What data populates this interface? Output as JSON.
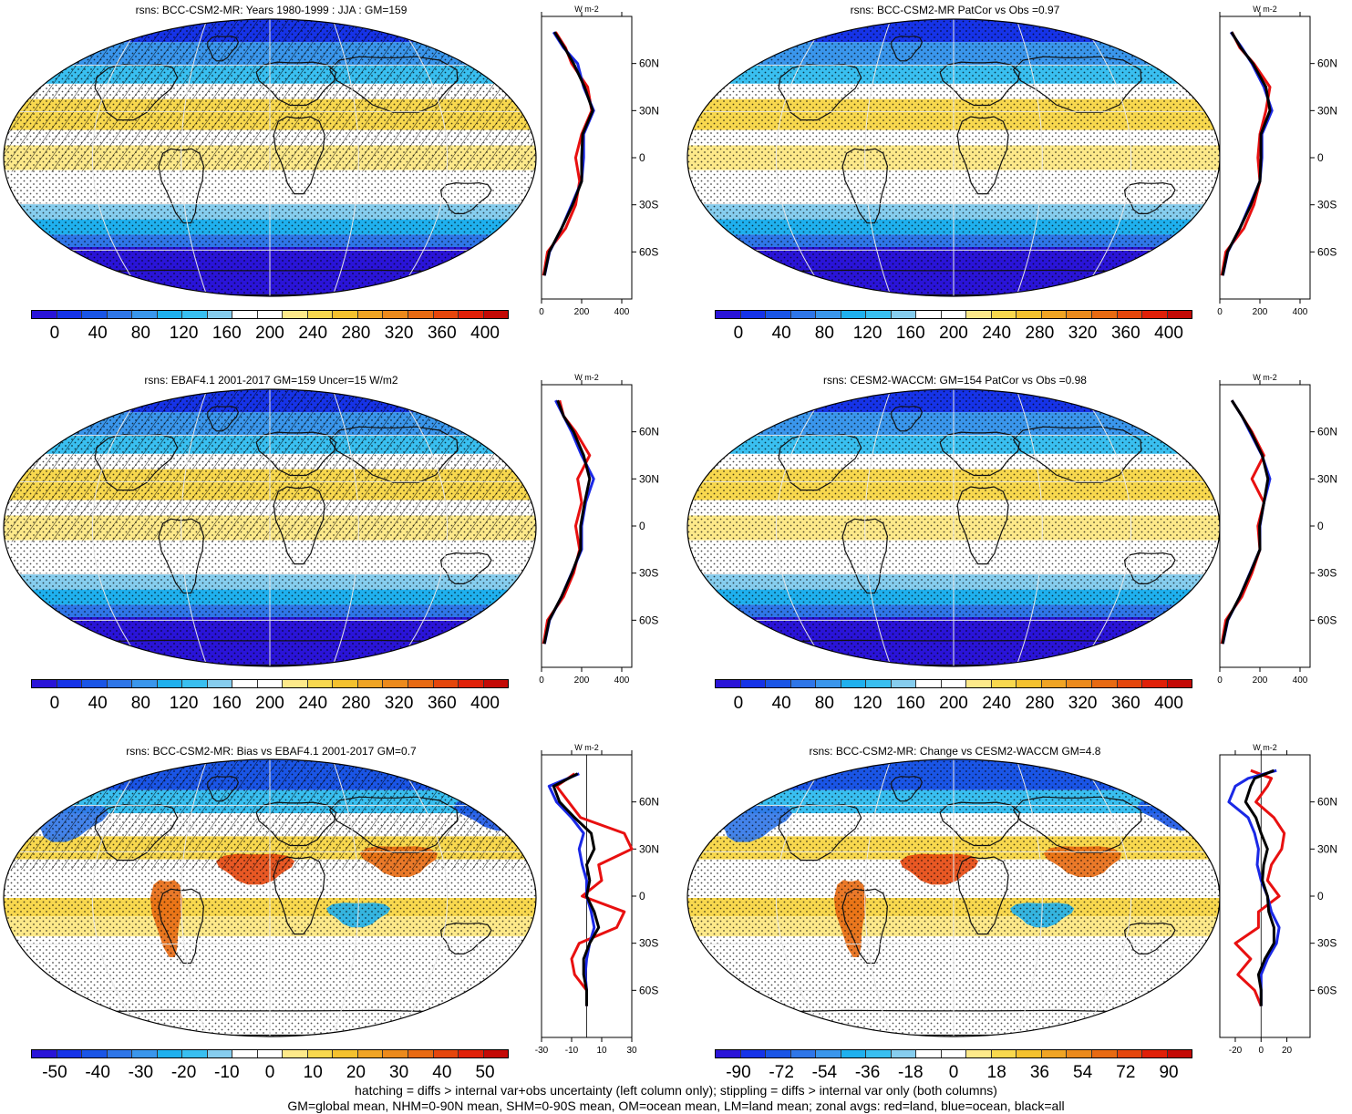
{
  "panels": [
    {
      "id": "p1",
      "title": "rsns: BCC-CSM2-MR: Years 1980-1999 : JJA : GM=159",
      "palette": "full",
      "hatching": "heavy",
      "colorbar": {
        "labels": [
          "0",
          "40",
          "80",
          "120",
          "160",
          "200",
          "240",
          "280",
          "320",
          "360",
          "400"
        ]
      },
      "zonal": {
        "xticks": [
          "0",
          "200",
          "400"
        ],
        "xlim": [
          0,
          450
        ],
        "unit": "W m-2",
        "zero_line": false
      }
    },
    {
      "id": "p2",
      "title": "rsns: BCC-CSM2-MR PatCor vs Obs =0.97",
      "palette": "full",
      "hatching": "none",
      "colorbar": {
        "labels": [
          "0",
          "40",
          "80",
          "120",
          "160",
          "200",
          "240",
          "280",
          "320",
          "360",
          "400"
        ]
      },
      "zonal": {
        "xticks": [
          "0",
          "200",
          "400"
        ],
        "xlim": [
          0,
          450
        ],
        "unit": "W m-2",
        "zero_line": false
      }
    },
    {
      "id": "p3",
      "title": "rsns: EBAF4.1 2001-2017 GM=159 Uncer=15 W/m2",
      "palette": "full",
      "hatching": "heavy",
      "colorbar": {
        "labels": [
          "0",
          "40",
          "80",
          "120",
          "160",
          "200",
          "240",
          "280",
          "320",
          "360",
          "400"
        ]
      },
      "zonal": {
        "xticks": [
          "0",
          "200",
          "400"
        ],
        "xlim": [
          0,
          450
        ],
        "unit": "W m-2",
        "zero_line": false
      }
    },
    {
      "id": "p4",
      "title": "rsns: CESM2-WACCM: GM=154 PatCor vs Obs =0.98",
      "palette": "full",
      "hatching": "none",
      "colorbar": {
        "labels": [
          "0",
          "40",
          "80",
          "120",
          "160",
          "200",
          "240",
          "280",
          "320",
          "360",
          "400"
        ]
      },
      "zonal": {
        "xticks": [
          "0",
          "200",
          "400"
        ],
        "xlim": [
          0,
          450
        ],
        "unit": "W m-2",
        "zero_line": false
      }
    },
    {
      "id": "p5",
      "title": "rsns: BCC-CSM2-MR: Bias vs EBAF4.1 2001-2017 GM=0.7",
      "palette": "diff",
      "hatching": "partial",
      "colorbar": {
        "labels": [
          "-50",
          "-40",
          "-30",
          "-20",
          "-10",
          "0",
          "10",
          "20",
          "30",
          "40",
          "50"
        ]
      },
      "zonal": {
        "xticks": [
          "-30",
          "-10",
          "10",
          "30"
        ],
        "xlim": [
          -30,
          30
        ],
        "unit": "W m-2",
        "zero_line": true
      }
    },
    {
      "id": "p6",
      "title": "rsns: BCC-CSM2-MR: Change vs CESM2-WACCM GM=4.8",
      "palette": "diff",
      "hatching": "none",
      "colorbar": {
        "labels": [
          "-90",
          "-72",
          "-54",
          "-36",
          "-18",
          "0",
          "18",
          "36",
          "54",
          "72",
          "90"
        ]
      },
      "zonal": {
        "xticks": [
          "-20",
          "0",
          "20"
        ],
        "xlim": [
          -32,
          38
        ],
        "unit": "W m-2",
        "zero_line": true
      }
    }
  ],
  "lat_ticks": [
    "60N",
    "30N",
    "0",
    "30S",
    "60S"
  ],
  "colors": {
    "full_palette": [
      "#2a14d8",
      "#1633e8",
      "#1a55e6",
      "#2f76e8",
      "#3a96ec",
      "#1fb0ee",
      "#39bff0",
      "#86cdee",
      "#ffffff",
      "#ffffff",
      "#fde98a",
      "#f8d84e",
      "#f4c12e",
      "#f0a424",
      "#ec8a1c",
      "#e86a12",
      "#e5460c",
      "#e02008",
      "#c40a06"
    ],
    "diff_palette": [
      "#2a14d8",
      "#1633e8",
      "#1a55e6",
      "#2f76e8",
      "#3a96ec",
      "#1fb0ee",
      "#39bff0",
      "#86cdee",
      "#ffffff",
      "#ffffff",
      "#fde98a",
      "#f8d84e",
      "#f4c12e",
      "#f0a424",
      "#ec8a1c",
      "#e86a12",
      "#e5460c",
      "#e02008",
      "#c40a06"
    ],
    "land_curve": "#e81010",
    "ocean_curve": "#1a28e6",
    "all_curve": "#000000"
  },
  "chart_data": [
    {
      "type": "heatmap",
      "title": "rsns: BCC-CSM2-MR: Years 1980-1999 : JJA : GM=159",
      "colorbar_range": [
        0,
        400
      ],
      "zonal_profile": {
        "lat": [
          80,
          70,
          60,
          45,
          30,
          15,
          0,
          -15,
          -30,
          -45,
          -60,
          -75
        ],
        "land": [
          70,
          120,
          150,
          230,
          250,
          200,
          170,
          190,
          170,
          120,
          30,
          10
        ],
        "ocean": [
          60,
          110,
          180,
          210,
          260,
          210,
          210,
          200,
          150,
          100,
          40,
          15
        ],
        "all": [
          65,
          115,
          160,
          215,
          255,
          205,
          200,
          200,
          155,
          100,
          38,
          14
        ]
      }
    },
    {
      "type": "heatmap",
      "title": "rsns: BCC-CSM2-MR PatCor vs Obs =0.97",
      "colorbar_range": [
        0,
        400
      ],
      "zonal_profile": {
        "lat": [
          80,
          70,
          60,
          45,
          30,
          15,
          0,
          -15,
          -30,
          -45,
          -60,
          -75
        ],
        "land": [
          60,
          100,
          170,
          250,
          230,
          200,
          190,
          200,
          170,
          120,
          30,
          10
        ],
        "ocean": [
          55,
          110,
          160,
          220,
          260,
          210,
          210,
          200,
          150,
          100,
          40,
          15
        ],
        "all": [
          58,
          105,
          165,
          230,
          250,
          205,
          205,
          200,
          155,
          100,
          38,
          14
        ]
      }
    },
    {
      "type": "heatmap",
      "title": "rsns: EBAF4.1 2001-2017 GM=159 Uncer=15 W/m2",
      "colorbar_range": [
        0,
        400
      ],
      "zonal_profile": {
        "lat": [
          80,
          70,
          60,
          45,
          30,
          15,
          0,
          -15,
          -30,
          -45,
          -60,
          -75
        ],
        "land": [
          90,
          110,
          170,
          240,
          180,
          200,
          170,
          190,
          160,
          110,
          30,
          10
        ],
        "ocean": [
          70,
          110,
          150,
          200,
          260,
          220,
          200,
          200,
          150,
          100,
          40,
          15
        ],
        "all": [
          80,
          110,
          160,
          210,
          240,
          215,
          195,
          195,
          152,
          100,
          38,
          14
        ]
      }
    },
    {
      "type": "heatmap",
      "title": "rsns: CESM2-WACCM: GM=154 PatCor vs Obs =0.98",
      "colorbar_range": [
        0,
        400
      ],
      "zonal_profile": {
        "lat": [
          80,
          70,
          60,
          45,
          30,
          15,
          0,
          -15,
          -30,
          -45,
          -60,
          -75
        ],
        "land": [
          60,
          110,
          160,
          220,
          160,
          220,
          190,
          200,
          160,
          110,
          30,
          10
        ],
        "ocean": [
          60,
          110,
          150,
          210,
          250,
          220,
          200,
          200,
          150,
          100,
          40,
          15
        ],
        "all": [
          60,
          110,
          155,
          212,
          240,
          220,
          198,
          200,
          152,
          100,
          38,
          14
        ]
      }
    },
    {
      "type": "heatmap",
      "title": "rsns: BCC-CSM2-MR: Bias vs EBAF4.1 2001-2017 GM=0.7",
      "colorbar_range": [
        -50,
        50
      ],
      "zonal_profile": {
        "lat": [
          78,
          70,
          60,
          50,
          40,
          30,
          20,
          10,
          0,
          -10,
          -20,
          -30,
          -40,
          -50,
          -60,
          -70
        ],
        "land": [
          -8,
          -20,
          -12,
          -4,
          25,
          30,
          8,
          10,
          -3,
          25,
          20,
          -5,
          -10,
          -8,
          0,
          0
        ],
        "ocean": [
          -5,
          -25,
          -20,
          -10,
          -2,
          -5,
          -3,
          0,
          0,
          3,
          5,
          2,
          0,
          -1,
          0,
          0
        ],
        "all": [
          -6,
          -22,
          -18,
          -8,
          3,
          5,
          0,
          2,
          0,
          5,
          8,
          2,
          -2,
          -2,
          0,
          0
        ]
      }
    },
    {
      "type": "heatmap",
      "title": "rsns: BCC-CSM2-MR: Change vs CESM2-WACCM GM=4.8",
      "colorbar_range": [
        -90,
        90
      ],
      "zonal_profile": {
        "lat": [
          80,
          75,
          70,
          60,
          50,
          40,
          30,
          20,
          10,
          0,
          -10,
          -20,
          -30,
          -40,
          -50,
          -60,
          -70
        ],
        "land": [
          -8,
          8,
          5,
          -4,
          10,
          18,
          16,
          8,
          5,
          14,
          -2,
          -2,
          -20,
          -8,
          -18,
          -5,
          0
        ],
        "ocean": [
          12,
          -10,
          -20,
          -25,
          -10,
          -5,
          -2,
          -3,
          0,
          5,
          8,
          14,
          12,
          5,
          0,
          0,
          0
        ],
        "all": [
          10,
          -5,
          -8,
          -12,
          -4,
          0,
          5,
          2,
          1,
          5,
          6,
          10,
          10,
          3,
          -2,
          0,
          0
        ]
      }
    }
  ],
  "footer": {
    "line1": "hatching = diffs > internal var+obs uncertainty (left column only); stippling = diffs > internal var only (both columns)",
    "line2": "GM=global mean, NHM=0-90N mean, SHM=0-90S mean, OM=ocean mean, LM=land mean; zonal avgs: red=land, blue=ocean, black=all"
  }
}
